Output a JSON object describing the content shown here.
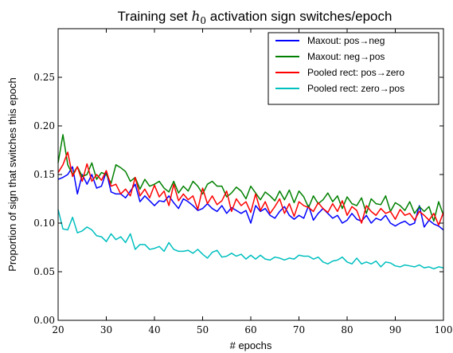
{
  "chart_data": {
    "type": "line",
    "title_prefix": "Training set ",
    "title_math_base": "h",
    "title_math_sub": "0",
    "title_suffix": " activation sign switches/epoch",
    "xlabel": "# epochs",
    "ylabel": "Proportion of sign that switches this epoch",
    "xlim": [
      20,
      100
    ],
    "ylim": [
      0.0,
      0.3
    ],
    "xticks": [
      20,
      30,
      40,
      50,
      60,
      70,
      80,
      90,
      100
    ],
    "yticks": [
      0.0,
      0.05,
      0.1,
      0.15,
      0.2,
      0.25
    ],
    "ytick_labels": [
      "0.00",
      "0.05",
      "0.10",
      "0.15",
      "0.20",
      "0.25"
    ],
    "grid": false,
    "legend_position": "top-right",
    "series": [
      {
        "name": "Maxout: pos→neg",
        "color": "#0000ff",
        "values": [
          0.145,
          0.147,
          0.15,
          0.158,
          0.13,
          0.15,
          0.14,
          0.15,
          0.136,
          0.138,
          0.153,
          0.132,
          0.13,
          0.13,
          0.126,
          0.133,
          0.14,
          0.122,
          0.128,
          0.123,
          0.118,
          0.123,
          0.122,
          0.128,
          0.121,
          0.115,
          0.125,
          0.122,
          0.118,
          0.113,
          0.115,
          0.12,
          0.115,
          0.112,
          0.118,
          0.11,
          0.116,
          0.113,
          0.11,
          0.113,
          0.1,
          0.118,
          0.112,
          0.115,
          0.108,
          0.105,
          0.112,
          0.117,
          0.108,
          0.104,
          0.108,
          0.105,
          0.118,
          0.103,
          0.11,
          0.115,
          0.11,
          0.105,
          0.108,
          0.1,
          0.103,
          0.11,
          0.104,
          0.102,
          0.108,
          0.1,
          0.105,
          0.103,
          0.108,
          0.1,
          0.097,
          0.1,
          0.102,
          0.098,
          0.1,
          0.118,
          0.096,
          0.103,
          0.099,
          0.097,
          0.093
        ]
      },
      {
        "name": "Maxout: neg→pos",
        "color": "#008000",
        "values": [
          0.162,
          0.191,
          0.16,
          0.15,
          0.158,
          0.148,
          0.15,
          0.162,
          0.145,
          0.152,
          0.15,
          0.141,
          0.16,
          0.157,
          0.153,
          0.143,
          0.147,
          0.135,
          0.145,
          0.138,
          0.14,
          0.143,
          0.136,
          0.132,
          0.143,
          0.131,
          0.138,
          0.133,
          0.143,
          0.138,
          0.13,
          0.14,
          0.143,
          0.138,
          0.138,
          0.127,
          0.131,
          0.137,
          0.133,
          0.125,
          0.138,
          0.131,
          0.124,
          0.132,
          0.128,
          0.123,
          0.133,
          0.124,
          0.134,
          0.121,
          0.133,
          0.127,
          0.116,
          0.128,
          0.12,
          0.124,
          0.131,
          0.122,
          0.128,
          0.115,
          0.127,
          0.12,
          0.118,
          0.126,
          0.11,
          0.125,
          0.12,
          0.119,
          0.128,
          0.112,
          0.121,
          0.118,
          0.113,
          0.122,
          0.11,
          0.117,
          0.112,
          0.117,
          0.102,
          0.122,
          0.108
        ]
      },
      {
        "name": "Pooled rect: pos→zero",
        "color": "#ff0000",
        "values": [
          0.152,
          0.16,
          0.173,
          0.148,
          0.158,
          0.143,
          0.161,
          0.143,
          0.15,
          0.144,
          0.154,
          0.138,
          0.14,
          0.13,
          0.135,
          0.128,
          0.147,
          0.128,
          0.135,
          0.126,
          0.139,
          0.127,
          0.133,
          0.118,
          0.14,
          0.123,
          0.13,
          0.124,
          0.128,
          0.114,
          0.136,
          0.12,
          0.128,
          0.119,
          0.123,
          0.133,
          0.112,
          0.125,
          0.118,
          0.122,
          0.111,
          0.13,
          0.113,
          0.122,
          0.11,
          0.117,
          0.125,
          0.11,
          0.12,
          0.107,
          0.122,
          0.118,
          0.116,
          0.112,
          0.121,
          0.115,
          0.111,
          0.12,
          0.112,
          0.123,
          0.108,
          0.117,
          0.113,
          0.1,
          0.118,
          0.112,
          0.108,
          0.115,
          0.11,
          0.112,
          0.104,
          0.114,
          0.108,
          0.11,
          0.103,
          0.112,
          0.108,
          0.103,
          0.11,
          0.098,
          0.111
        ]
      },
      {
        "name": "Pooled rect: zero→pos",
        "color": "#00bfbf",
        "values": [
          0.114,
          0.094,
          0.093,
          0.106,
          0.09,
          0.092,
          0.096,
          0.093,
          0.087,
          0.086,
          0.081,
          0.089,
          0.083,
          0.086,
          0.08,
          0.089,
          0.073,
          0.078,
          0.078,
          0.073,
          0.074,
          0.076,
          0.071,
          0.08,
          0.073,
          0.071,
          0.071,
          0.072,
          0.069,
          0.073,
          0.068,
          0.064,
          0.07,
          0.072,
          0.065,
          0.066,
          0.069,
          0.066,
          0.068,
          0.063,
          0.067,
          0.063,
          0.067,
          0.063,
          0.062,
          0.065,
          0.064,
          0.062,
          0.064,
          0.063,
          0.067,
          0.066,
          0.066,
          0.063,
          0.065,
          0.06,
          0.058,
          0.061,
          0.062,
          0.065,
          0.06,
          0.058,
          0.064,
          0.058,
          0.06,
          0.058,
          0.061,
          0.055,
          0.06,
          0.059,
          0.056,
          0.055,
          0.057,
          0.056,
          0.055,
          0.057,
          0.054,
          0.055,
          0.053,
          0.055,
          0.054
        ]
      }
    ]
  }
}
